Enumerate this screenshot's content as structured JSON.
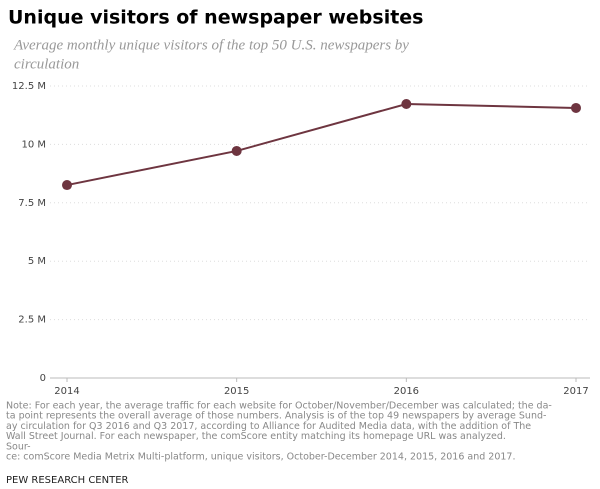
{
  "chart_data": {
    "type": "line",
    "title": "Unique visitors of newspaper websites",
    "subtitle": [
      "Average monthly unique visitors of the top 50 U.S. newspapers by",
      "circulation"
    ],
    "x": [
      2014,
      2015,
      2016,
      2017
    ],
    "xlim": [
      2014,
      2017
    ],
    "xticks": [
      2014,
      2015,
      2016,
      2017
    ],
    "series": [
      {
        "color": "#6e3540",
        "values": [
          8260000,
          9720000,
          11730000,
          11560000
        ]
      }
    ],
    "ylim": [
      0,
      12500000
    ],
    "yticks": [
      0,
      {
        "value": 2500000,
        "label": "2.5 M"
      },
      {
        "value": 5000000,
        "label": "5 M"
      },
      {
        "value": 7500000,
        "label": "7.5 M"
      },
      {
        "value": 10000000,
        "label": "10 M"
      },
      {
        "value": 12500000,
        "label": "12.5 M"
      }
    ],
    "grid": true,
    "note": [
      "Note: For each year, the average traffic for each website for October/November/December was calculated; the da-",
      "ta point represents the overall average of those numbers. Analysis is of the top 49 newspapers by average Sund-",
      "ay circulation for Q3 2016 and Q3 2017, according to Alliance for Audited Media data, with the addition of The",
      " Wall Street Journal. For each newspaper, the comScore entity matching its homepage URL was analyzed.",
      " Sour-",
      "ce: comScore Media Metrix Multi-platform, unique visitors, October-December 2014, 2015, 2016 and 2017."
    ],
    "credit": "PEW RESEARCH CENTER"
  }
}
